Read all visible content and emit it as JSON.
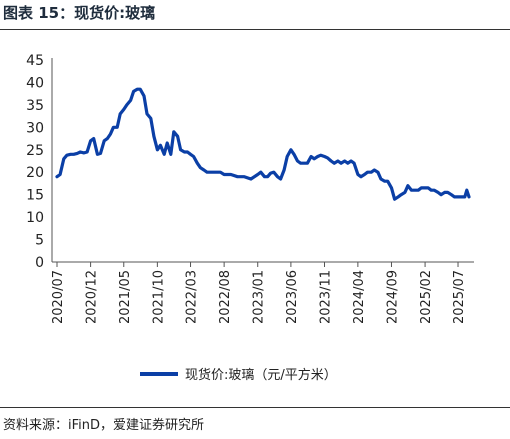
{
  "header": {
    "title": "图表 15：现货价:玻璃"
  },
  "footer": {
    "source": "资料来源：iFinD，爱建证券研究所"
  },
  "colors": {
    "series": "#0b3fa6",
    "axis": "#555555",
    "text": "#222222"
  },
  "chart_data": {
    "type": "line",
    "title": "",
    "xlabel": "",
    "ylabel": "",
    "ylim": [
      0,
      45
    ],
    "yticks": [
      0,
      5,
      10,
      15,
      20,
      25,
      30,
      35,
      40,
      45
    ],
    "xticks": [
      "2020/07",
      "2020/12",
      "2021/05",
      "2021/10",
      "2022/03",
      "2022/08",
      "2023/01",
      "2023/06",
      "2023/11",
      "2024/04",
      "2024/09",
      "2025/02",
      "2025/07"
    ],
    "grid": false,
    "legend": "bottom-center",
    "series": [
      {
        "name": "现货价:玻璃（元/平方米）",
        "x": [
          "2020/07/01",
          "2020/07/15",
          "2020/08/01",
          "2020/08/15",
          "2020/09/01",
          "2020/09/15",
          "2020/10/01",
          "2020/10/15",
          "2020/11/01",
          "2020/11/15",
          "2020/12/01",
          "2020/12/15",
          "2021/01/01",
          "2021/01/15",
          "2021/02/01",
          "2021/02/15",
          "2021/03/01",
          "2021/03/15",
          "2021/04/01",
          "2021/04/15",
          "2021/05/01",
          "2021/05/15",
          "2021/06/01",
          "2021/06/15",
          "2021/07/01",
          "2021/07/15",
          "2021/08/01",
          "2021/08/15",
          "2021/09/01",
          "2021/09/15",
          "2021/10/01",
          "2021/10/15",
          "2021/11/01",
          "2021/11/15",
          "2021/12/01",
          "2021/12/15",
          "2022/01/01",
          "2022/01/15",
          "2022/02/01",
          "2022/02/15",
          "2022/03/01",
          "2022/03/15",
          "2022/04/01",
          "2022/04/15",
          "2022/05/01",
          "2022/05/15",
          "2022/06/01",
          "2022/06/15",
          "2022/07/01",
          "2022/07/15",
          "2022/08/01",
          "2022/08/15",
          "2022/09/01",
          "2022/10/01",
          "2022/11/01",
          "2022/12/01",
          "2023/01/01",
          "2023/01/15",
          "2023/02/01",
          "2023/02/15",
          "2023/03/01",
          "2023/03/15",
          "2023/04/01",
          "2023/04/15",
          "2023/05/01",
          "2023/05/15",
          "2023/06/01",
          "2023/06/15",
          "2023/07/01",
          "2023/07/15",
          "2023/08/01",
          "2023/08/15",
          "2023/09/01",
          "2023/09/15",
          "2023/10/01",
          "2023/10/15",
          "2023/11/01",
          "2023/11/15",
          "2023/12/01",
          "2023/12/15",
          "2024/01/01",
          "2024/01/15",
          "2024/02/01",
          "2024/02/15",
          "2024/03/01",
          "2024/03/15",
          "2024/04/01",
          "2024/04/15",
          "2024/05/01",
          "2024/05/15",
          "2024/06/01",
          "2024/06/15",
          "2024/07/01",
          "2024/07/15",
          "2024/08/01",
          "2024/08/15",
          "2024/09/01",
          "2024/09/15",
          "2024/10/01",
          "2024/10/15",
          "2024/11/01",
          "2024/11/15",
          "2024/12/01",
          "2024/12/15",
          "2025/01/01",
          "2025/01/15",
          "2025/02/01",
          "2025/02/15",
          "2025/03/01",
          "2025/03/15",
          "2025/04/01",
          "2025/04/15",
          "2025/05/01",
          "2025/05/15",
          "2025/06/01",
          "2025/06/15",
          "2025/07/01",
          "2025/07/15",
          "2025/08/01",
          "2025/08/10",
          "2025/08/20"
        ],
        "values": [
          19,
          19.5,
          23,
          23.8,
          24,
          24,
          24.2,
          24.5,
          24.3,
          24.5,
          27,
          27.5,
          24,
          24.2,
          27,
          27.5,
          28.5,
          30,
          30,
          33,
          34,
          35,
          36,
          38,
          38.5,
          38.5,
          37,
          33,
          32,
          28,
          25,
          26,
          24,
          26.5,
          24,
          29,
          28,
          25,
          24.5,
          24.5,
          24,
          23.5,
          22,
          21,
          20.5,
          20,
          20,
          20,
          20,
          20,
          19.5,
          19.5,
          19.5,
          19,
          19,
          18.5,
          19.5,
          20,
          19,
          19,
          19.8,
          20,
          19,
          18.5,
          20.5,
          23.5,
          25,
          24,
          22.5,
          22,
          22,
          22,
          23.5,
          23,
          23.5,
          23.8,
          23.5,
          23.2,
          22.5,
          22,
          22.5,
          22,
          22.5,
          22,
          22.5,
          22,
          19.5,
          19,
          19.5,
          20,
          20,
          20.5,
          20,
          18.5,
          18,
          18,
          16.5,
          14,
          14.5,
          15,
          15.5,
          17,
          16,
          16,
          16,
          16.5,
          16.5,
          16.5,
          16,
          16,
          15.5,
          15,
          15.5,
          15.5,
          15,
          14.5,
          14.5,
          14.5,
          14.5,
          16,
          14.5
        ]
      }
    ]
  }
}
